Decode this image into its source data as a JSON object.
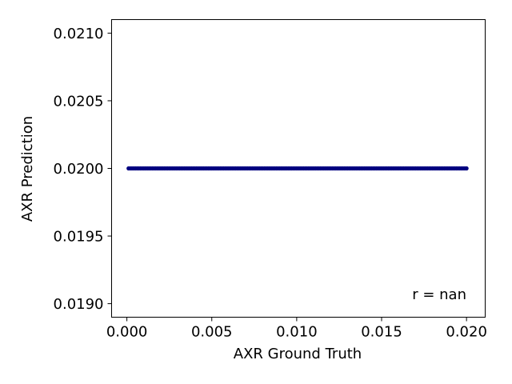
{
  "chart_data": {
    "type": "scatter",
    "xlabel": "AXR Ground Truth",
    "ylabel": "AXR Prediction",
    "xlim": [
      -0.0009,
      0.0211
    ],
    "ylim": [
      0.0189,
      0.0211
    ],
    "x_ticks": [
      0.0,
      0.005,
      0.01,
      0.015,
      0.02
    ],
    "x_tick_labels": [
      "0.000",
      "0.005",
      "0.010",
      "0.015",
      "0.020"
    ],
    "y_ticks": [
      0.019,
      0.0195,
      0.02,
      0.0205,
      0.021
    ],
    "y_tick_labels": [
      "0.0190",
      "0.0195",
      "0.0200",
      "0.0205",
      "0.0210"
    ],
    "annotation": "r = nan",
    "grid": false,
    "series": [
      {
        "color": "#000080",
        "x_range": [
          0.0001,
          0.02
        ],
        "y_value": 0.02,
        "point_count": 200
      }
    ]
  }
}
